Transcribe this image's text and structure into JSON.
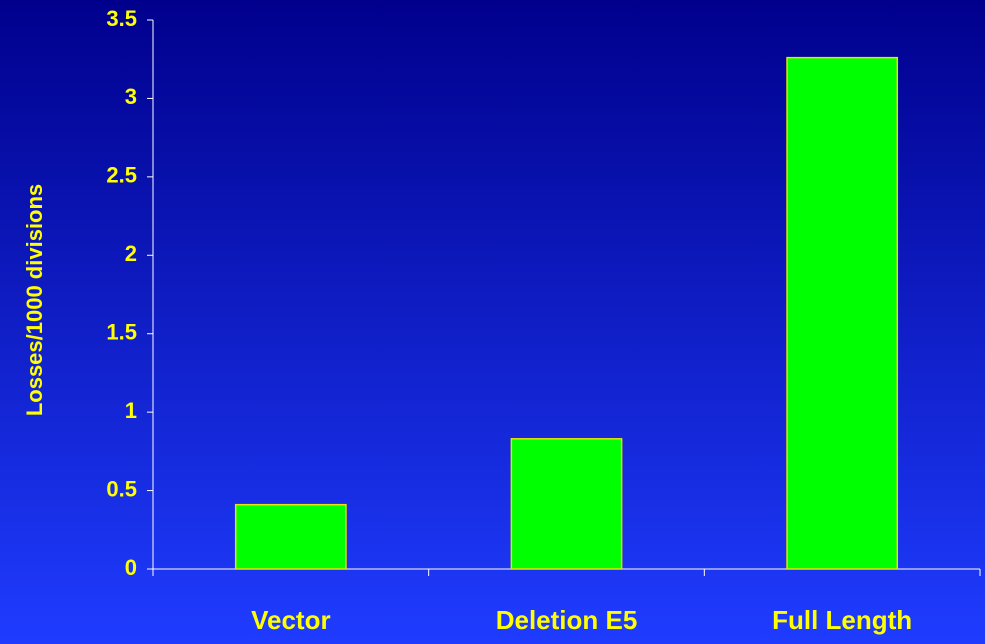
{
  "chart_data": {
    "type": "bar",
    "y_axis_label": "Losses/1000 divisions",
    "categories": [
      "Vector",
      "Deletion E5",
      "Full Length"
    ],
    "values": [
      0.41,
      0.83,
      3.26
    ],
    "color": "#00ff00",
    "ylim": [
      0,
      3.5
    ],
    "yticks": [
      0,
      0.5,
      1,
      1.5,
      2,
      2.5,
      3,
      3.5
    ],
    "grid": false
  }
}
